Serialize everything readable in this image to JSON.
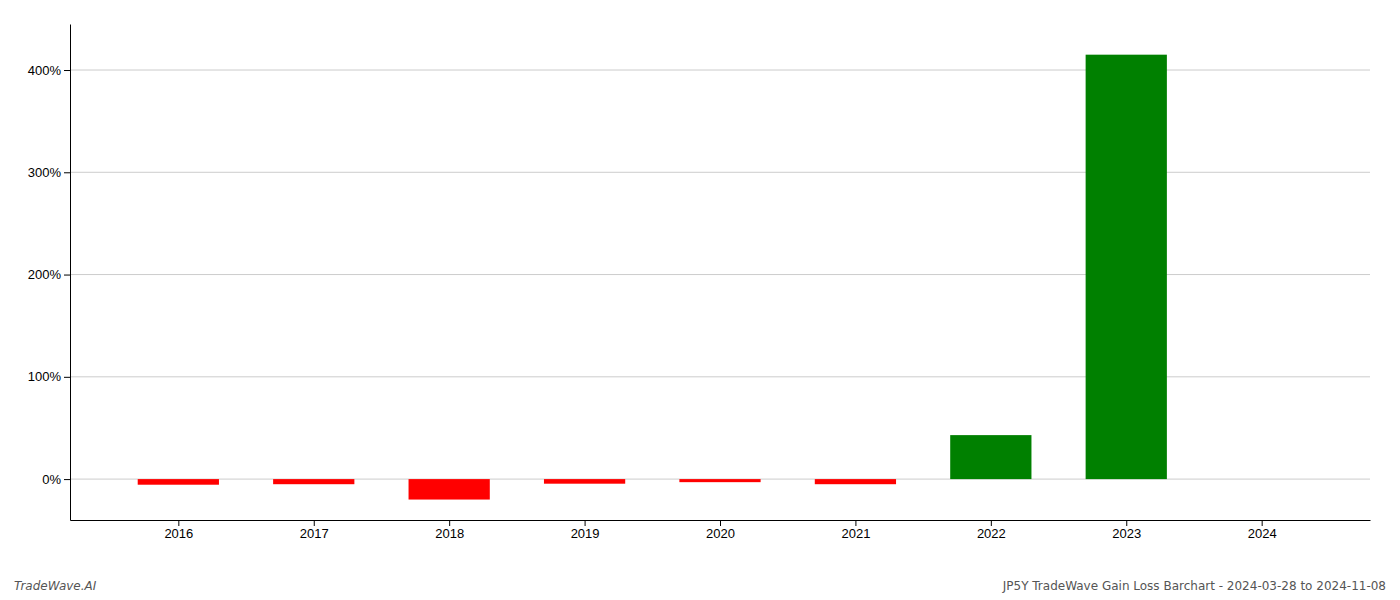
{
  "chart_data": {
    "type": "bar",
    "x": [
      2016,
      2017,
      2018,
      2019,
      2020,
      2021,
      2022,
      2023,
      2024
    ],
    "values": [
      -5.5,
      -5.0,
      -20.0,
      -4.5,
      -3.0,
      -5.0,
      43.0,
      415.0,
      0.0
    ],
    "colors": [
      "#ff0000",
      "#ff0000",
      "#ff0000",
      "#ff0000",
      "#ff0000",
      "#ff0000",
      "#008000",
      "#008000",
      "#008000"
    ],
    "xlim": [
      2015.2,
      2024.8
    ],
    "xticks": [
      2016,
      2017,
      2018,
      2019,
      2020,
      2021,
      2022,
      2023,
      2024
    ],
    "ylim": [
      -40,
      445
    ],
    "yticks": [
      {
        "value": 0,
        "label": "0%"
      },
      {
        "value": 100,
        "label": "100%"
      },
      {
        "value": 200,
        "label": "200%"
      },
      {
        "value": 300,
        "label": "300%"
      },
      {
        "value": 400,
        "label": "400%"
      }
    ],
    "grid": true,
    "annotations": [
      "TradeWave.AI",
      "JP5Y TradeWave Gain Loss Barchart - 2024-03-28 to 2024-11-08"
    ]
  }
}
